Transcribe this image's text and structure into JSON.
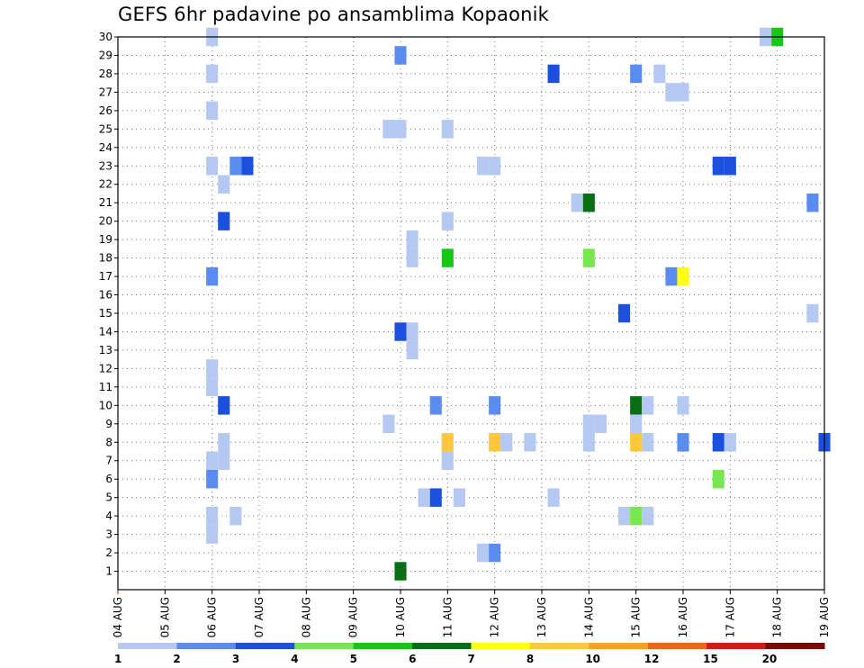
{
  "chart_data": {
    "type": "heatmap",
    "title": "GEFS 6hr padavine po ansamblima Kopaonik",
    "xlabel": "",
    "ylabel": "",
    "x_range": [
      0,
      60
    ],
    "y_range": [
      0,
      30
    ],
    "x_ticks": [
      {
        "label": "04 AUG",
        "x": 0
      },
      {
        "label": "05 AUG",
        "x": 4
      },
      {
        "label": "06 AUG",
        "x": 8
      },
      {
        "label": "07 AUG",
        "x": 12
      },
      {
        "label": "08 AUG",
        "x": 16
      },
      {
        "label": "09 AUG",
        "x": 20
      },
      {
        "label": "10 AUG",
        "x": 24
      },
      {
        "label": "11 AUG",
        "x": 28
      },
      {
        "label": "12 AUG",
        "x": 32
      },
      {
        "label": "13 AUG",
        "x": 36
      },
      {
        "label": "14 AUG",
        "x": 40
      },
      {
        "label": "15 AUG",
        "x": 44
      },
      {
        "label": "16 AUG",
        "x": 48
      },
      {
        "label": "17 AUG",
        "x": 52
      },
      {
        "label": "18 AUG",
        "x": 56
      },
      {
        "label": "19 AUG",
        "x": 60
      }
    ],
    "y_ticks": [
      1,
      2,
      3,
      4,
      5,
      6,
      7,
      8,
      9,
      10,
      11,
      12,
      13,
      14,
      15,
      16,
      17,
      18,
      19,
      20,
      21,
      22,
      23,
      24,
      25,
      26,
      27,
      28,
      29,
      30
    ],
    "grid": true,
    "colorbar": {
      "levels": [
        "1",
        "2",
        "3",
        "4",
        "5",
        "6",
        "7",
        "8",
        "10",
        "12",
        "15",
        "20"
      ],
      "colors": [
        "#b4c8f2",
        "#5a8cf0",
        "#1a50dc",
        "#78e650",
        "#14c814",
        "#0a6e14",
        "#ffff14",
        "#ffc83c",
        "#ffa01e",
        "#f06414",
        "#c81e14",
        "#780a0a"
      ]
    },
    "cells": [
      {
        "x": 8,
        "y": 30,
        "c": 0
      },
      {
        "x": 55,
        "y": 30,
        "c": 0
      },
      {
        "x": 56,
        "y": 30,
        "c": 4
      },
      {
        "x": 24,
        "y": 29,
        "c": 1
      },
      {
        "x": 8,
        "y": 28,
        "c": 0
      },
      {
        "x": 37,
        "y": 28,
        "c": 2
      },
      {
        "x": 44,
        "y": 28,
        "c": 1
      },
      {
        "x": 46,
        "y": 28,
        "c": 0
      },
      {
        "x": 47,
        "y": 27,
        "c": 0
      },
      {
        "x": 48,
        "y": 27,
        "c": 0
      },
      {
        "x": 8,
        "y": 26,
        "c": 0
      },
      {
        "x": 23,
        "y": 25,
        "c": 0
      },
      {
        "x": 24,
        "y": 25,
        "c": 0
      },
      {
        "x": 28,
        "y": 25,
        "c": 0
      },
      {
        "x": 8,
        "y": 23,
        "c": 0
      },
      {
        "x": 10,
        "y": 23,
        "c": 1
      },
      {
        "x": 11,
        "y": 23,
        "c": 2
      },
      {
        "x": 31,
        "y": 23,
        "c": 0
      },
      {
        "x": 32,
        "y": 23,
        "c": 0
      },
      {
        "x": 51,
        "y": 23,
        "c": 2
      },
      {
        "x": 52,
        "y": 23,
        "c": 2
      },
      {
        "x": 9,
        "y": 22,
        "c": 0
      },
      {
        "x": 39,
        "y": 21,
        "c": 0
      },
      {
        "x": 40,
        "y": 21,
        "c": 5
      },
      {
        "x": 59,
        "y": 21,
        "c": 1
      },
      {
        "x": 9,
        "y": 20,
        "c": 2
      },
      {
        "x": 28,
        "y": 20,
        "c": 0
      },
      {
        "x": 25,
        "y": 19,
        "c": 0
      },
      {
        "x": 25,
        "y": 18,
        "c": 0
      },
      {
        "x": 28,
        "y": 18,
        "c": 4
      },
      {
        "x": 40,
        "y": 18,
        "c": 3
      },
      {
        "x": 8,
        "y": 17,
        "c": 1
      },
      {
        "x": 47,
        "y": 17,
        "c": 1
      },
      {
        "x": 48,
        "y": 17,
        "c": 6
      },
      {
        "x": 43,
        "y": 15,
        "c": 2
      },
      {
        "x": 59,
        "y": 15,
        "c": 0
      },
      {
        "x": 24,
        "y": 14,
        "c": 2
      },
      {
        "x": 25,
        "y": 14,
        "c": 0
      },
      {
        "x": 25,
        "y": 13,
        "c": 0
      },
      {
        "x": 8,
        "y": 12,
        "c": 0
      },
      {
        "x": 8,
        "y": 11,
        "c": 0
      },
      {
        "x": 9,
        "y": 10,
        "c": 2
      },
      {
        "x": 27,
        "y": 10,
        "c": 1
      },
      {
        "x": 32,
        "y": 10,
        "c": 1
      },
      {
        "x": 44,
        "y": 10,
        "c": 5
      },
      {
        "x": 45,
        "y": 10,
        "c": 0
      },
      {
        "x": 48,
        "y": 10,
        "c": 0
      },
      {
        "x": 23,
        "y": 9,
        "c": 0
      },
      {
        "x": 40,
        "y": 9,
        "c": 0
      },
      {
        "x": 41,
        "y": 9,
        "c": 0
      },
      {
        "x": 44,
        "y": 9,
        "c": 0
      },
      {
        "x": 9,
        "y": 8,
        "c": 0
      },
      {
        "x": 28,
        "y": 8,
        "c": 7
      },
      {
        "x": 32,
        "y": 8,
        "c": 7
      },
      {
        "x": 33,
        "y": 8,
        "c": 0
      },
      {
        "x": 35,
        "y": 8,
        "c": 0
      },
      {
        "x": 40,
        "y": 8,
        "c": 0
      },
      {
        "x": 44,
        "y": 8,
        "c": 7
      },
      {
        "x": 45,
        "y": 8,
        "c": 0
      },
      {
        "x": 48,
        "y": 8,
        "c": 1
      },
      {
        "x": 51,
        "y": 8,
        "c": 2
      },
      {
        "x": 52,
        "y": 8,
        "c": 0
      },
      {
        "x": 60,
        "y": 8,
        "c": 2
      },
      {
        "x": 8,
        "y": 7,
        "c": 0
      },
      {
        "x": 9,
        "y": 7,
        "c": 0
      },
      {
        "x": 28,
        "y": 7,
        "c": 0
      },
      {
        "x": 8,
        "y": 6,
        "c": 1
      },
      {
        "x": 51,
        "y": 6,
        "c": 3
      },
      {
        "x": 26,
        "y": 5,
        "c": 0
      },
      {
        "x": 27,
        "y": 5,
        "c": 2
      },
      {
        "x": 29,
        "y": 5,
        "c": 0
      },
      {
        "x": 37,
        "y": 5,
        "c": 0
      },
      {
        "x": 8,
        "y": 4,
        "c": 0
      },
      {
        "x": 10,
        "y": 4,
        "c": 0
      },
      {
        "x": 43,
        "y": 4,
        "c": 0
      },
      {
        "x": 44,
        "y": 4,
        "c": 3
      },
      {
        "x": 45,
        "y": 4,
        "c": 0
      },
      {
        "x": 8,
        "y": 3,
        "c": 0
      },
      {
        "x": 31,
        "y": 2,
        "c": 0
      },
      {
        "x": 32,
        "y": 2,
        "c": 1
      },
      {
        "x": 24,
        "y": 1,
        "c": 5
      }
    ]
  }
}
